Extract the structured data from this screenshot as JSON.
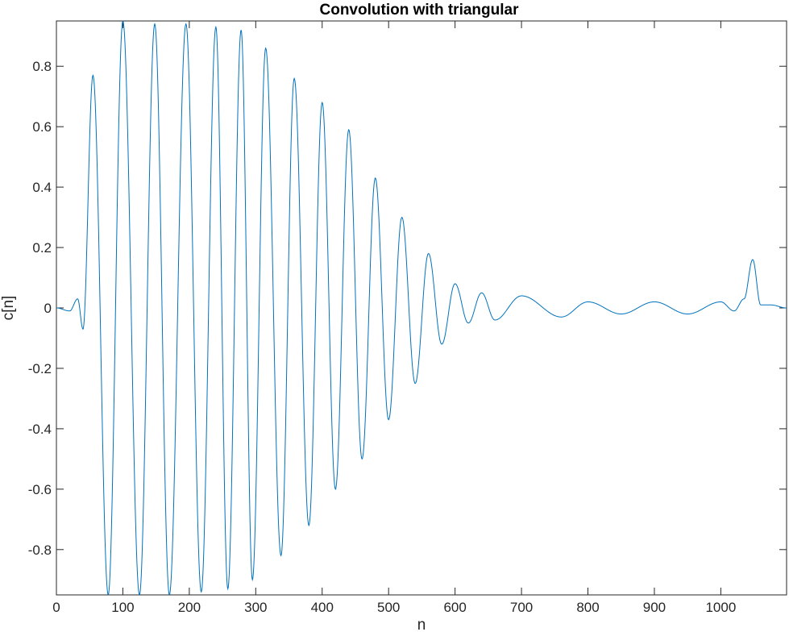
{
  "chart_data": {
    "type": "line",
    "title": "Convolution with triangular",
    "xlabel": "n",
    "ylabel": "c[n]",
    "xlim": [
      0,
      1099
    ],
    "ylim": [
      -0.95,
      0.95
    ],
    "xticks": [
      0,
      100,
      200,
      300,
      400,
      500,
      600,
      700,
      800,
      900,
      1000
    ],
    "xtick_labels": [
      "0",
      "100",
      "200",
      "300",
      "400",
      "500",
      "600",
      "700",
      "800",
      "900",
      "1000"
    ],
    "yticks": [
      -0.8,
      -0.6,
      -0.4,
      -0.2,
      0,
      0.2,
      0.4,
      0.6,
      0.8
    ],
    "ytick_labels": [
      "-0.8",
      "-0.6",
      "-0.4",
      "-0.2",
      "0",
      "0.2",
      "0.4",
      "0.6",
      "0.8"
    ],
    "grid": false,
    "series_color": "#0072BD",
    "series": [
      {
        "x": [
          0,
          20,
          32,
          40,
          55,
          78,
          100,
          125,
          148,
          170,
          195,
          218,
          240,
          258,
          278,
          295,
          315,
          338,
          358,
          380,
          400,
          420,
          440,
          460,
          480,
          500,
          520,
          540,
          560,
          580,
          600,
          620,
          640,
          660,
          700,
          760,
          800,
          850,
          900,
          950,
          1000,
          1020,
          1035,
          1048,
          1060,
          1075,
          1099
        ],
        "y": [
          0,
          -0.01,
          0.03,
          -0.07,
          0.77,
          -0.95,
          0.95,
          -0.95,
          0.94,
          -0.95,
          0.94,
          -0.94,
          0.93,
          -0.93,
          0.92,
          -0.9,
          0.86,
          -0.82,
          0.76,
          -0.72,
          0.68,
          -0.6,
          0.59,
          -0.5,
          0.43,
          -0.37,
          0.3,
          -0.25,
          0.18,
          -0.12,
          0.08,
          -0.05,
          0.05,
          -0.04,
          0.04,
          -0.03,
          0.02,
          -0.02,
          0.02,
          -0.02,
          0.02,
          -0.01,
          0.03,
          0.16,
          0.01,
          0.01,
          0
        ]
      }
    ]
  }
}
